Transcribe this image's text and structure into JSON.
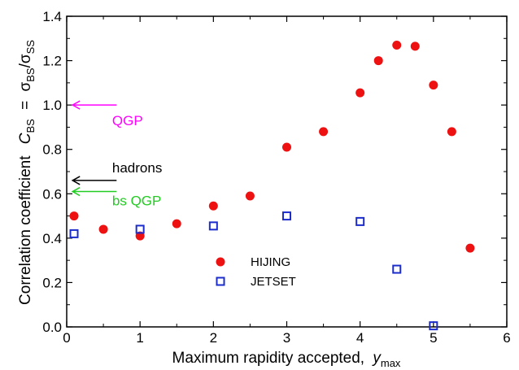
{
  "chart_data": {
    "type": "scatter",
    "xlabel": "Maximum rapidity accepted,",
    "xlabel_var": "y",
    "xlabel_sub": "max",
    "ylabel": "Correlation coefficient",
    "ylabel_formula": {
      "C": "C",
      "C_sub": "BS",
      "eq": "=",
      "s1": "σ",
      "s1_sub": "BS",
      "slash": "/",
      "s2": "σ",
      "s2_sub": "SS"
    },
    "xlim": [
      0,
      6
    ],
    "ylim": [
      0,
      1.4
    ],
    "x_ticks": [
      0,
      1,
      2,
      3,
      4,
      5,
      6
    ],
    "y_ticks": [
      0.0,
      0.2,
      0.4,
      0.6,
      0.8,
      1.0,
      1.2,
      1.4
    ],
    "x_tick_labels": [
      "0",
      "1",
      "2",
      "3",
      "4",
      "5",
      "6"
    ],
    "y_tick_labels": [
      "0.0",
      "0.2",
      "0.4",
      "0.6",
      "0.8",
      "1.0",
      "1.2",
      "1.4"
    ],
    "series": [
      {
        "name": "HIJING",
        "marker": "filled-circle",
        "color": "#ee1111",
        "x": [
          0.1,
          0.5,
          1.0,
          1.5,
          2.0,
          2.5,
          3.0,
          3.5,
          4.0,
          4.25,
          4.5,
          4.75,
          5.0,
          5.25,
          5.5
        ],
        "y": [
          0.5,
          0.44,
          0.41,
          0.465,
          0.545,
          0.59,
          0.81,
          0.88,
          1.055,
          1.2,
          1.27,
          1.265,
          1.09,
          0.88,
          0.355
        ]
      },
      {
        "name": "JETSET",
        "marker": "open-square",
        "color": "#1c2dcc",
        "x": [
          0.1,
          1.0,
          2.0,
          3.0,
          4.0,
          4.5,
          5.0
        ],
        "y": [
          0.42,
          0.44,
          0.455,
          0.5,
          0.475,
          0.26,
          0.005
        ]
      }
    ],
    "legend_placement": "bottom-center",
    "annotations": [
      {
        "text": "QGP",
        "y": 1.0,
        "color": "#ff00ff"
      },
      {
        "text": "hadrons",
        "y": 0.66,
        "color": "#000000"
      },
      {
        "text": "bs QGP",
        "y": 0.61,
        "color": "#22cc22"
      }
    ]
  }
}
